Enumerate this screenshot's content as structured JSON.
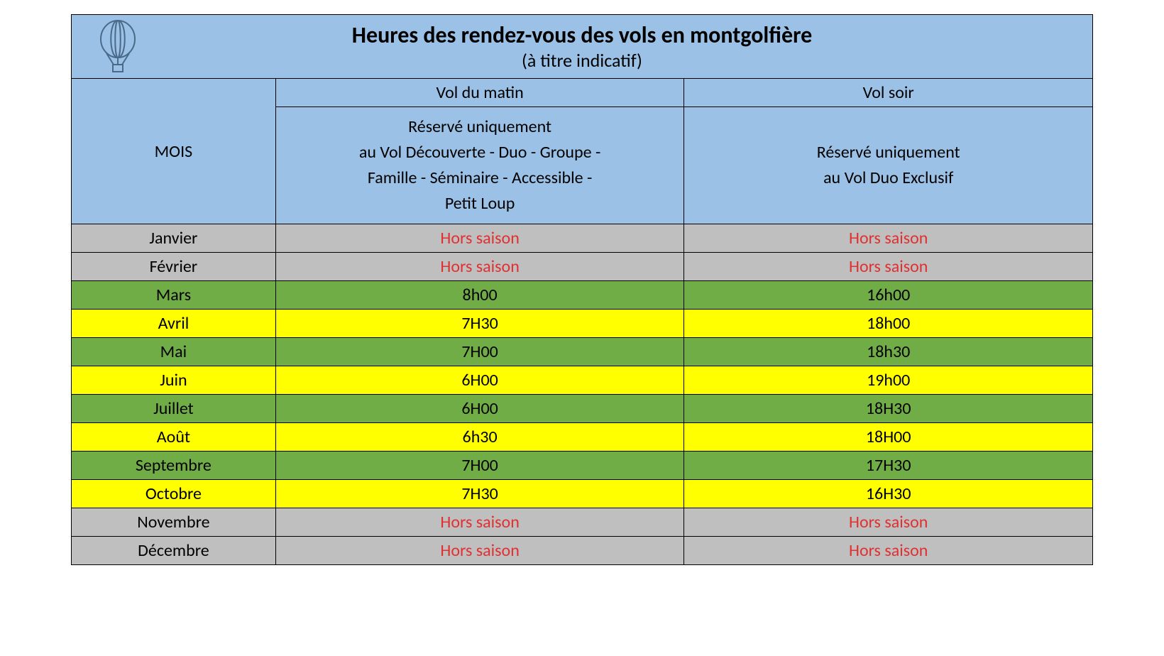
{
  "title": "Heures des rendez-vous des vols en montgolfière",
  "subtitle": "(à titre indicatif)",
  "title_fontsize": "32px",
  "subtitle_fontsize": "26px",
  "header_fontsize": "24px",
  "body_fontsize": "24px",
  "colors": {
    "header_bg": "#9bc2e6",
    "off_bg": "#bfbfbf",
    "green_bg": "#70ad47",
    "yellow_bg": "#ffff00",
    "off_text": "#e03030",
    "text": "#000000",
    "border": "#000000",
    "icon_stroke": "#4a6a8a"
  },
  "columns": {
    "month_label": "MOIS",
    "morning_label": "Vol du matin",
    "evening_label": "Vol soir",
    "morning_desc_lines": [
      "Réservé uniquement",
      "au Vol Découverte -  Duo -  Groupe -",
      "Famille - Séminaire - Accessible -",
      "Petit Loup"
    ],
    "evening_desc_lines": [
      "Réservé uniquement",
      "au Vol Duo Exclusif"
    ]
  },
  "rows": [
    {
      "month": "Janvier",
      "morning": "Hors saison",
      "evening": "Hors saison",
      "bg": "#bfbfbf",
      "off": true
    },
    {
      "month": "Février",
      "morning": "Hors saison",
      "evening": "Hors saison",
      "bg": "#bfbfbf",
      "off": true
    },
    {
      "month": "Mars",
      "morning": "8h00",
      "evening": "16h00",
      "bg": "#70ad47",
      "off": false
    },
    {
      "month": "Avril",
      "morning": "7H30",
      "evening": "18h00",
      "bg": "#ffff00",
      "off": false
    },
    {
      "month": "Mai",
      "morning": "7H00",
      "evening": "18h30",
      "bg": "#70ad47",
      "off": false
    },
    {
      "month": "Juin",
      "morning": "6H00",
      "evening": "19h00",
      "bg": "#ffff00",
      "off": false
    },
    {
      "month": "Juillet",
      "morning": "6H00",
      "evening": "18H30",
      "bg": "#70ad47",
      "off": false
    },
    {
      "month": "Août",
      "morning": "6h30",
      "evening": "18H00",
      "bg": "#ffff00",
      "off": false
    },
    {
      "month": "Septembre",
      "morning": "7H00",
      "evening": "17H30",
      "bg": "#70ad47",
      "off": false
    },
    {
      "month": "Octobre",
      "morning": "7H30",
      "evening": "16H30",
      "bg": "#ffff00",
      "off": false
    },
    {
      "month": "Novembre",
      "morning": "Hors saison",
      "evening": "Hors saison",
      "bg": "#bfbfbf",
      "off": true
    },
    {
      "month": "Décembre",
      "morning": "Hors saison",
      "evening": "Hors saison",
      "bg": "#bfbfbf",
      "off": true
    }
  ]
}
